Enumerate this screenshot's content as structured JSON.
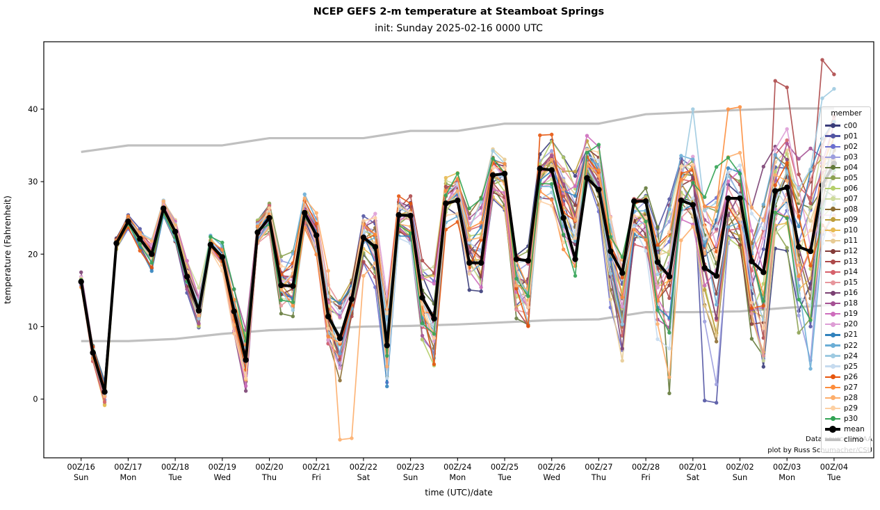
{
  "figure": {
    "title": "NCEP GEFS 2-m temperature at Steamboat Springs",
    "subtitle": "init: Sunday 2025-02-16 0000 UTC",
    "annotations": {
      "line1": "Data source: NOAA",
      "line2": "plot by Russ Schumacher/CSU"
    }
  },
  "chart_data": {
    "type": "line",
    "title": "NCEP GEFS 2-m temperature at Steamboat Springs",
    "subtitle": "init: Sunday 2025-02-16 0000 UTC",
    "xlabel": "time (UTC)/date",
    "ylabel": "temperature (Fahrenheit)",
    "yticks": [
      0,
      10,
      20,
      30,
      40
    ],
    "ylim": [
      -8.1,
      49.3
    ],
    "x_points": 65,
    "hours_per_step": 6,
    "grid": false,
    "legend_position": "right",
    "legend_title": "member",
    "x_tick_labels": [
      [
        "00Z/16",
        "Sun"
      ],
      [
        "00Z/17",
        "Mon"
      ],
      [
        "00Z/18",
        "Tue"
      ],
      [
        "00Z/19",
        "Wed"
      ],
      [
        "00Z/20",
        "Thu"
      ],
      [
        "00Z/21",
        "Fri"
      ],
      [
        "00Z/22",
        "Sat"
      ],
      [
        "00Z/23",
        "Sun"
      ],
      [
        "00Z/24",
        "Mon"
      ],
      [
        "00Z/25",
        "Tue"
      ],
      [
        "00Z/26",
        "Wed"
      ],
      [
        "00Z/27",
        "Thu"
      ],
      [
        "00Z/28",
        "Fri"
      ],
      [
        "00Z/01",
        "Sat"
      ],
      [
        "00Z/02",
        "Sun"
      ],
      [
        "00Z/03",
        "Mon"
      ],
      [
        "00Z/04",
        "Tue"
      ]
    ],
    "mean_label": "mean",
    "climo_label": "climo",
    "mean_color": "#000000",
    "climo_color": "#bdbdbd",
    "climo_legend_color": "#c0c0c0",
    "mean": [
      16.2,
      6.4,
      1.0,
      21.5,
      24.5,
      22.1,
      20.0,
      26.3,
      23.1,
      16.9,
      12.2,
      21.3,
      19.6,
      12.1,
      5.4,
      23.0,
      25.0,
      15.7,
      15.6,
      25.7,
      22.6,
      11.4,
      8.4,
      13.8,
      22.3,
      21.0,
      7.4,
      25.4,
      25.3,
      14.0,
      11.1,
      27.0,
      27.4,
      18.8,
      18.8,
      30.9,
      31.1,
      19.3,
      19.1,
      31.8,
      31.6,
      25.0,
      19.3,
      30.5,
      28.9,
      20.4,
      17.4,
      27.3,
      27.3,
      18.9,
      16.9,
      27.4,
      26.8,
      18.1,
      17.0,
      27.7,
      27.7,
      19.0,
      17.5,
      28.7,
      29.2,
      21.0,
      20.4,
      29.5,
      32.5
    ],
    "climo_upper_daily": [
      34.1,
      35.0,
      35.0,
      35.0,
      36.0,
      36.0,
      36.0,
      37.0,
      37.0,
      38.0,
      38.0,
      38.0,
      39.3,
      39.6,
      39.9,
      40.1,
      40.1
    ],
    "climo_lower_daily": [
      8.0,
      8.0,
      8.3,
      9.0,
      9.5,
      9.7,
      10.0,
      10.1,
      10.3,
      10.6,
      10.9,
      11.0,
      12.0,
      12.0,
      12.1,
      12.6,
      13.0
    ],
    "members": [
      {
        "name": "c00",
        "color": "#393b79"
      },
      {
        "name": "p01",
        "color": "#5254a3"
      },
      {
        "name": "p02",
        "color": "#6b6ecf"
      },
      {
        "name": "p03",
        "color": "#9c9ede"
      },
      {
        "name": "p04",
        "color": "#637939"
      },
      {
        "name": "p05",
        "color": "#8ca252"
      },
      {
        "name": "p06",
        "color": "#b5cf6b"
      },
      {
        "name": "p07",
        "color": "#cedb9c"
      },
      {
        "name": "p08",
        "color": "#8c6d31"
      },
      {
        "name": "p09",
        "color": "#bd9e39"
      },
      {
        "name": "p10",
        "color": "#e7ba52"
      },
      {
        "name": "p11",
        "color": "#e7cb94"
      },
      {
        "name": "p12",
        "color": "#843c39"
      },
      {
        "name": "p13",
        "color": "#ad494a"
      },
      {
        "name": "p14",
        "color": "#d6616b"
      },
      {
        "name": "p15",
        "color": "#e7969c"
      },
      {
        "name": "p16",
        "color": "#7b4173"
      },
      {
        "name": "p18",
        "color": "#a55194"
      },
      {
        "name": "p19",
        "color": "#ce6dbd"
      },
      {
        "name": "p20",
        "color": "#de9ed6"
      },
      {
        "name": "p21",
        "color": "#3182bd"
      },
      {
        "name": "p22",
        "color": "#6baed6"
      },
      {
        "name": "p24",
        "color": "#9ecae1"
      },
      {
        "name": "p25",
        "color": "#c6dbef"
      },
      {
        "name": "p26",
        "color": "#e6550d"
      },
      {
        "name": "p27",
        "color": "#fd8d3c"
      },
      {
        "name": "p28",
        "color": "#fdae6b"
      },
      {
        "name": "p29",
        "color": "#fdd0a2"
      },
      {
        "name": "p30",
        "color": "#31a354"
      }
    ],
    "member_overrides": {
      "p16": {
        "0": 17.5
      },
      "p28": {
        "21": 17.7,
        "22": -5.6,
        "23": -5.4,
        "24": 17.0
      },
      "p26": {
        "39": 36.4,
        "40": 36.5
      },
      "p30": {
        "43": 34.0,
        "44": 35.1
      },
      "p04": {
        "50": 0.8
      },
      "p01": {
        "53": -0.2,
        "54": -0.5
      },
      "p24": {
        "52": 40.0,
        "63": 41.5,
        "64": 42.8
      },
      "p27": {
        "55": 40.0,
        "56": 40.3
      },
      "p13": {
        "59": 43.9,
        "60": 43.0,
        "61": 31.0,
        "62": 27.0,
        "63": 46.8,
        "64": 44.8
      }
    },
    "spread_model": {
      "base": 0.5,
      "growth": 5.5,
      "exp": 1.2,
      "phase_by_hour": [
        1.15,
        1.7,
        2.2,
        1.0
      ]
    }
  }
}
